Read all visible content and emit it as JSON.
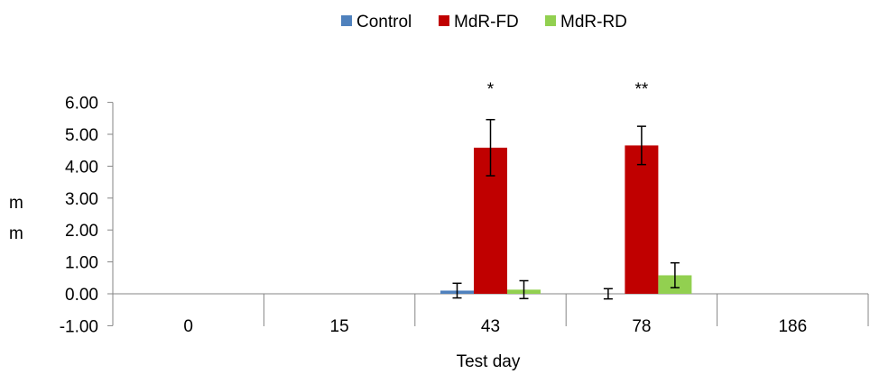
{
  "chart_data": {
    "type": "bar",
    "title": "",
    "xlabel": "Test day",
    "ylabel": "mm",
    "ylabel_lines": [
      "m",
      "m"
    ],
    "ylim": [
      -1.0,
      6.0
    ],
    "yticks": [
      "-1.00",
      "0.00",
      "1.00",
      "2.00",
      "3.00",
      "4.00",
      "5.00",
      "6.00"
    ],
    "ytick_values": [
      -1,
      0,
      1,
      2,
      3,
      4,
      5,
      6
    ],
    "categories": [
      "0",
      "15",
      "43",
      "78",
      "186"
    ],
    "series": [
      {
        "name": "Control",
        "color": "#4f81bd",
        "values": [
          0,
          0,
          0.1,
          0,
          0
        ],
        "errors": [
          0,
          0,
          0.23,
          0.16,
          0
        ]
      },
      {
        "name": "MdR-FD",
        "color": "#c00000",
        "values": [
          0,
          0,
          4.58,
          4.65,
          0
        ],
        "errors": [
          0,
          0,
          0.88,
          0.6,
          0
        ]
      },
      {
        "name": "MdR-RD",
        "color": "#92d050",
        "values": [
          0,
          0,
          0.13,
          0.58,
          0
        ],
        "errors": [
          0,
          0,
          0.28,
          0.39,
          0
        ]
      }
    ],
    "annotations": [
      {
        "category": "43",
        "series": "MdR-FD",
        "text": "*"
      },
      {
        "category": "78",
        "series": "MdR-FD",
        "text": "**"
      }
    ],
    "grid": false,
    "legend": "top-center"
  }
}
